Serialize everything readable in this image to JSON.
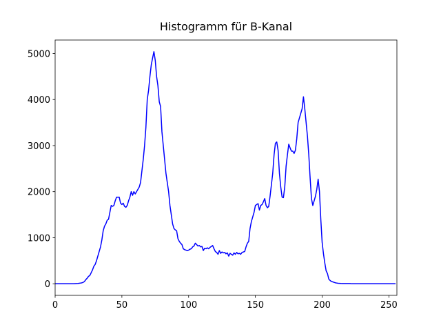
{
  "chart_data": {
    "type": "line",
    "title": "Histogramm für B-Kanal",
    "x": [
      0,
      1,
      2,
      3,
      4,
      5,
      6,
      7,
      8,
      9,
      10,
      11,
      12,
      13,
      14,
      15,
      16,
      17,
      18,
      19,
      20,
      21,
      22,
      23,
      24,
      25,
      26,
      27,
      28,
      29,
      30,
      31,
      32,
      33,
      34,
      35,
      36,
      37,
      38,
      39,
      40,
      41,
      42,
      43,
      44,
      45,
      46,
      47,
      48,
      49,
      50,
      51,
      52,
      53,
      54,
      55,
      56,
      57,
      58,
      59,
      60,
      61,
      62,
      63,
      64,
      65,
      66,
      67,
      68,
      69,
      70,
      71,
      72,
      73,
      74,
      75,
      76,
      77,
      78,
      79,
      80,
      81,
      82,
      83,
      84,
      85,
      86,
      87,
      88,
      89,
      90,
      91,
      92,
      93,
      94,
      95,
      96,
      97,
      98,
      99,
      100,
      101,
      102,
      103,
      104,
      105,
      106,
      107,
      108,
      109,
      110,
      111,
      112,
      113,
      114,
      115,
      116,
      117,
      118,
      119,
      120,
      121,
      122,
      123,
      124,
      125,
      126,
      127,
      128,
      129,
      130,
      131,
      132,
      133,
      134,
      135,
      136,
      137,
      138,
      139,
      140,
      141,
      142,
      143,
      144,
      145,
      146,
      147,
      148,
      149,
      150,
      151,
      152,
      153,
      154,
      155,
      156,
      157,
      158,
      159,
      160,
      161,
      162,
      163,
      164,
      165,
      166,
      167,
      168,
      169,
      170,
      171,
      172,
      173,
      174,
      175,
      176,
      177,
      178,
      179,
      180,
      181,
      182,
      183,
      184,
      185,
      186,
      187,
      188,
      189,
      190,
      191,
      192,
      193,
      194,
      195,
      196,
      197,
      198,
      199,
      200,
      201,
      202,
      203,
      204,
      205,
      206,
      207,
      208,
      209,
      210,
      211,
      212,
      213,
      214,
      215,
      216,
      217,
      218,
      219,
      220,
      221,
      222,
      223,
      224,
      225,
      226,
      227,
      228,
      229,
      230,
      231,
      232,
      233,
      234,
      235,
      236,
      237,
      238,
      239,
      240,
      241,
      242,
      243,
      244,
      245,
      246,
      247,
      248,
      249,
      250,
      251,
      252,
      253,
      254,
      255
    ],
    "values": [
      0,
      0,
      0,
      0,
      0,
      0,
      0,
      0,
      0,
      0,
      0,
      0,
      0,
      0,
      0,
      2,
      4,
      6,
      10,
      15,
      20,
      30,
      50,
      90,
      120,
      160,
      180,
      240,
      300,
      380,
      420,
      500,
      600,
      700,
      800,
      950,
      1150,
      1250,
      1300,
      1380,
      1400,
      1550,
      1700,
      1680,
      1700,
      1800,
      1880,
      1880,
      1880,
      1750,
      1720,
      1750,
      1680,
      1660,
      1700,
      1800,
      1880,
      2000,
      1920,
      2000,
      1950,
      2000,
      2050,
      2100,
      2200,
      2450,
      2700,
      3000,
      3400,
      4000,
      4200,
      4500,
      4750,
      4900,
      5040,
      4850,
      4500,
      4300,
      3950,
      3850,
      3300,
      3000,
      2700,
      2400,
      2200,
      2000,
      1700,
      1500,
      1300,
      1200,
      1170,
      1150,
      980,
      920,
      880,
      850,
      760,
      740,
      730,
      720,
      730,
      750,
      760,
      800,
      820,
      880,
      850,
      820,
      830,
      800,
      810,
      720,
      770,
      760,
      780,
      760,
      790,
      810,
      830,
      760,
      700,
      680,
      640,
      720,
      660,
      690,
      670,
      680,
      650,
      670,
      600,
      660,
      640,
      620,
      670,
      640,
      680,
      650,
      660,
      640,
      680,
      690,
      700,
      800,
      880,
      920,
      1200,
      1350,
      1450,
      1550,
      1700,
      1720,
      1740,
      1600,
      1700,
      1720,
      1780,
      1850,
      1700,
      1650,
      1680,
      1900,
      2150,
      2400,
      2800,
      3050,
      3080,
      2900,
      2400,
      2100,
      1880,
      1870,
      2100,
      2550,
      2800,
      3030,
      2950,
      2880,
      2880,
      2830,
      2900,
      3150,
      3500,
      3600,
      3700,
      3800,
      4060,
      3800,
      3500,
      3200,
      2800,
      2300,
      1850,
      1700,
      1800,
      1900,
      2050,
      2270,
      2000,
      1400,
      900,
      650,
      450,
      280,
      220,
      100,
      70,
      50,
      40,
      30,
      20,
      15,
      10,
      8,
      6,
      5,
      5,
      5,
      5,
      5,
      5,
      5,
      0,
      0,
      0,
      0,
      0,
      0,
      0,
      0,
      0,
      0,
      0,
      0,
      0,
      0,
      0,
      0,
      0,
      0,
      0,
      0,
      0,
      0,
      0,
      0,
      0,
      0,
      0,
      0,
      0,
      0,
      0,
      0,
      0,
      0
    ],
    "color": "#0000ff",
    "xlim": [
      0,
      256
    ],
    "xticks": [
      0,
      50,
      100,
      150,
      200,
      250
    ],
    "ylim": [
      -252,
      5292
    ],
    "yticks": [
      0,
      1000,
      2000,
      3000,
      4000,
      5000
    ]
  }
}
